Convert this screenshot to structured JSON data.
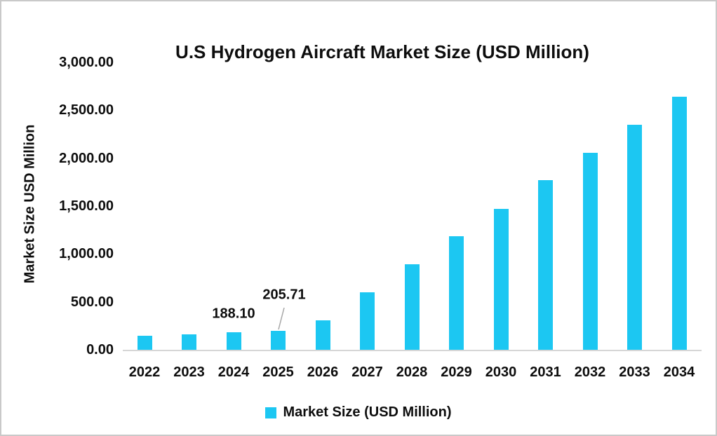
{
  "chart_data": {
    "type": "bar",
    "title": "U.S Hydrogen Aircraft Market Size (USD Million)",
    "ylabel": "Market Size USD Million",
    "xlabel": "",
    "categories": [
      "2022",
      "2023",
      "2024",
      "2025",
      "2026",
      "2027",
      "2028",
      "2029",
      "2030",
      "2031",
      "2032",
      "2033",
      "2034"
    ],
    "values": [
      157,
      172,
      188.1,
      205.71,
      317,
      605,
      900,
      1190,
      1478,
      1778,
      2063,
      2356,
      2650
    ],
    "data_labels": [
      {
        "category": "2024",
        "text": "188.10",
        "leader_line": false
      },
      {
        "category": "2025",
        "text": "205.71",
        "leader_line": true
      }
    ],
    "ylim": [
      0,
      3000
    ],
    "yticks": [
      "3,000.00",
      "2,500.00",
      "2,000.00",
      "1,500.00",
      "1,000.00",
      "500.00",
      "0.00"
    ],
    "grid": false,
    "legend": {
      "position": "bottom",
      "entries": [
        {
          "label": "Market Size (USD Million)",
          "color": "#1CC7F2"
        }
      ]
    },
    "bar_color": "#1CC7F2",
    "axis_line_color": "#D6D6D6",
    "leader_line_color": "#A6A6A6",
    "border_color": "#C9C9C9",
    "background_color": "#FFFFFF"
  }
}
